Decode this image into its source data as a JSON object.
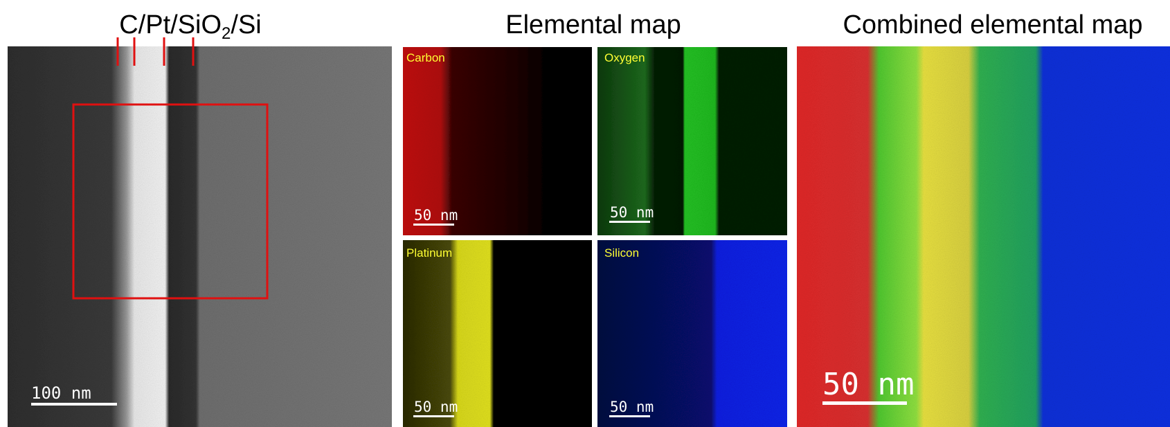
{
  "left_panel": {
    "title": [
      "C/Pt/SiO",
      "2",
      "/Si"
    ],
    "scale_bar": "100 nm"
  },
  "elemental_map": {
    "title": "Elemental map",
    "maps": [
      {
        "label": "Carbon",
        "scale_bar": "50 nm"
      },
      {
        "label": "Oxygen",
        "scale_bar": "50 nm"
      },
      {
        "label": "Platinum",
        "scale_bar": "50 nm"
      },
      {
        "label": "Silicon",
        "scale_bar": "50 nm"
      }
    ]
  },
  "combined_map": {
    "title": "Combined elemental map",
    "scale_bar": "50 nm"
  }
}
